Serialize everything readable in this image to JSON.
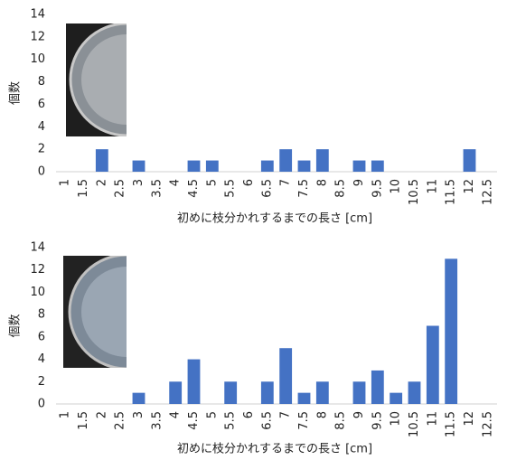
{
  "chart_data": [
    {
      "type": "bar",
      "y_label": "個数",
      "x_label": "初めに枝分かれするまでの長さ [cm]",
      "categories": [
        "1",
        "1.5",
        "2",
        "2.5",
        "3",
        "3.5",
        "4",
        "4.5",
        "5",
        "5.5",
        "6",
        "6.5",
        "7",
        "7.5",
        "8",
        "8.5",
        "9",
        "9.5",
        "10",
        "10.5",
        "11",
        "11.5",
        "12",
        "12.5"
      ],
      "values": [
        0,
        0,
        2,
        0,
        1,
        0,
        0,
        1,
        1,
        0,
        0,
        1,
        2,
        1,
        2,
        0,
        1,
        1,
        0,
        0,
        0,
        0,
        2,
        0
      ],
      "color": "#4472c4",
      "ylim": [
        0,
        14
      ],
      "yticks": [
        0,
        2,
        4,
        6,
        8,
        10,
        12,
        14
      ],
      "grid": false
    },
    {
      "type": "bar",
      "y_label": "個数",
      "x_label": "初めに枝分かれするまでの長さ [cm]",
      "categories": [
        "1",
        "1.5",
        "2",
        "2.5",
        "3",
        "3.5",
        "4",
        "4.5",
        "5",
        "5.5",
        "6",
        "6.5",
        "7",
        "7.5",
        "8",
        "8.5",
        "9",
        "9.5",
        "10",
        "10.5",
        "11",
        "11.5",
        "12",
        "12.5"
      ],
      "values": [
        0,
        0,
        0,
        0,
        1,
        0,
        2,
        4,
        0,
        2,
        0,
        2,
        5,
        1,
        2,
        0,
        2,
        3,
        1,
        2,
        7,
        13,
        0,
        0
      ],
      "color": "#4472c4",
      "ylim": [
        0,
        14
      ],
      "yticks": [
        0,
        2,
        4,
        6,
        8,
        10,
        12,
        14
      ],
      "grid": false
    }
  ]
}
